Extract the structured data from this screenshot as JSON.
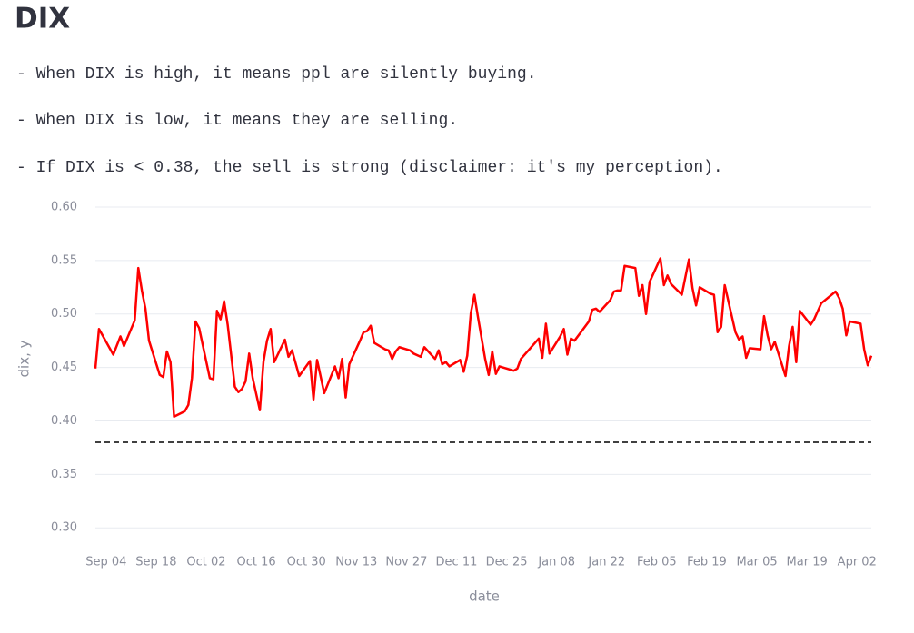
{
  "title": "DIX",
  "notes": [
    "- When DIX is high, it means ppl are silently buying.",
    "- When DIX is low, it means they are selling.",
    "- If DIX is < 0.38, the sell is strong (disclaimer: it's my perception)."
  ],
  "chart_data": {
    "type": "line",
    "color": "#ff0000",
    "x_label": "date",
    "y_label": "dix, y",
    "x": [
      "Sep 01",
      "Sep 02",
      "Sep 06",
      "Sep 08",
      "Sep 09",
      "Sep 12",
      "Sep 13",
      "Sep 14",
      "Sep 15",
      "Sep 16",
      "Sep 19",
      "Sep 20",
      "Sep 21",
      "Sep 22",
      "Sep 23",
      "Sep 26",
      "Sep 27",
      "Sep 28",
      "Sep 29",
      "Sep 30",
      "Oct 03",
      "Oct 04",
      "Oct 05",
      "Oct 06",
      "Oct 07",
      "Oct 08",
      "Oct 10",
      "Oct 11",
      "Oct 12",
      "Oct 13",
      "Oct 14",
      "Oct 15",
      "Oct 17",
      "Oct 18",
      "Oct 19",
      "Oct 20",
      "Oct 21",
      "Oct 24",
      "Oct 25",
      "Oct 26",
      "Oct 28",
      "Oct 31",
      "Nov 01",
      "Nov 02",
      "Nov 04",
      "Nov 07",
      "Nov 08",
      "Nov 09",
      "Nov 10",
      "Nov 11",
      "Nov 14",
      "Nov 15",
      "Nov 16",
      "Nov 17",
      "Nov 18",
      "Nov 21",
      "Nov 22",
      "Nov 23",
      "Nov 24",
      "Nov 25",
      "Nov 28",
      "Nov 29",
      "Dec 01",
      "Dec 02",
      "Dec 05",
      "Dec 06",
      "Dec 07",
      "Dec 08",
      "Dec 09",
      "Dec 12",
      "Dec 13",
      "Dec 14",
      "Dec 15",
      "Dec 16",
      "Dec 17",
      "Dec 19",
      "Dec 20",
      "Dec 21",
      "Dec 22",
      "Dec 23",
      "Dec 27",
      "Dec 28",
      "Dec 29",
      "Jan 03",
      "Jan 04",
      "Jan 05",
      "Jan 06",
      "Jan 09",
      "Jan 10",
      "Jan 11",
      "Jan 12",
      "Jan 13",
      "Jan 17",
      "Jan 18",
      "Jan 19",
      "Jan 20",
      "Jan 23",
      "Jan 24",
      "Jan 25",
      "Jan 26",
      "Jan 27",
      "Jan 30",
      "Jan 31",
      "Feb 01",
      "Feb 02",
      "Feb 03",
      "Feb 06",
      "Feb 07",
      "Feb 08",
      "Feb 09",
      "Feb 12",
      "Feb 14",
      "Feb 15",
      "Feb 16",
      "Feb 17",
      "Feb 20",
      "Feb 21",
      "Feb 22",
      "Feb 23",
      "Feb 24",
      "Feb 27",
      "Feb 28",
      "Mar 01",
      "Mar 02",
      "Mar 03",
      "Mar 06",
      "Mar 07",
      "Mar 08",
      "Mar 09",
      "Mar 10",
      "Mar 13",
      "Mar 14",
      "Mar 15",
      "Mar 16",
      "Mar 17",
      "Mar 20",
      "Mar 21",
      "Mar 23",
      "Mar 27",
      "Mar 28",
      "Mar 29",
      "Mar 30",
      "Mar 31",
      "Apr 03",
      "Apr 04",
      "Apr 05",
      "Apr 06"
    ],
    "values": [
      0.449,
      0.486,
      0.462,
      0.479,
      0.47,
      0.494,
      0.543,
      0.522,
      0.505,
      0.475,
      0.443,
      0.441,
      0.465,
      0.455,
      0.404,
      0.409,
      0.415,
      0.44,
      0.493,
      0.487,
      0.44,
      0.439,
      0.503,
      0.495,
      0.512,
      0.49,
      0.432,
      0.427,
      0.43,
      0.437,
      0.463,
      0.44,
      0.41,
      0.455,
      0.475,
      0.486,
      0.455,
      0.476,
      0.46,
      0.466,
      0.442,
      0.456,
      0.42,
      0.457,
      0.426,
      0.451,
      0.44,
      0.458,
      0.422,
      0.453,
      0.475,
      0.483,
      0.484,
      0.489,
      0.473,
      0.467,
      0.466,
      0.458,
      0.465,
      0.469,
      0.466,
      0.463,
      0.46,
      0.469,
      0.458,
      0.466,
      0.453,
      0.455,
      0.451,
      0.457,
      0.446,
      0.461,
      0.501,
      0.518,
      0.497,
      0.458,
      0.443,
      0.465,
      0.444,
      0.451,
      0.447,
      0.449,
      0.458,
      0.477,
      0.459,
      0.491,
      0.463,
      0.479,
      0.486,
      0.462,
      0.477,
      0.475,
      0.493,
      0.504,
      0.505,
      0.502,
      0.513,
      0.521,
      0.522,
      0.522,
      0.545,
      0.543,
      0.517,
      0.527,
      0.5,
      0.53,
      0.552,
      0.527,
      0.536,
      0.528,
      0.518,
      0.551,
      0.524,
      0.508,
      0.525,
      0.519,
      0.518,
      0.483,
      0.488,
      0.527,
      0.483,
      0.476,
      0.479,
      0.459,
      0.468,
      0.467,
      0.498,
      0.48,
      0.467,
      0.474,
      0.442,
      0.47,
      0.488,
      0.455,
      0.503,
      0.49,
      0.495,
      0.51,
      0.521,
      0.515,
      0.505,
      0.48,
      0.493,
      0.491,
      0.467,
      0.452,
      0.461
    ],
    "xlim": [
      "Sep 01",
      "Apr 06"
    ],
    "xticks": [
      "Sep 04",
      "Sep 18",
      "Oct 02",
      "Oct 16",
      "Oct 30",
      "Nov 13",
      "Nov 27",
      "Dec 11",
      "Dec 25",
      "Jan 08",
      "Jan 22",
      "Feb 05",
      "Feb 19",
      "Mar 05",
      "Mar 19",
      "Apr 02"
    ],
    "ylim": [
      0.29,
      0.6
    ],
    "yticks": [
      {
        "value": 0.3,
        "label": "0.30"
      },
      0.35,
      {
        "value": 0.4,
        "label": "0.40"
      },
      0.45,
      {
        "value": 0.5,
        "label": "0.50"
      },
      0.55,
      {
        "value": 0.6,
        "label": "0.60"
      }
    ],
    "grid": true,
    "reference_line": 0.38
  }
}
